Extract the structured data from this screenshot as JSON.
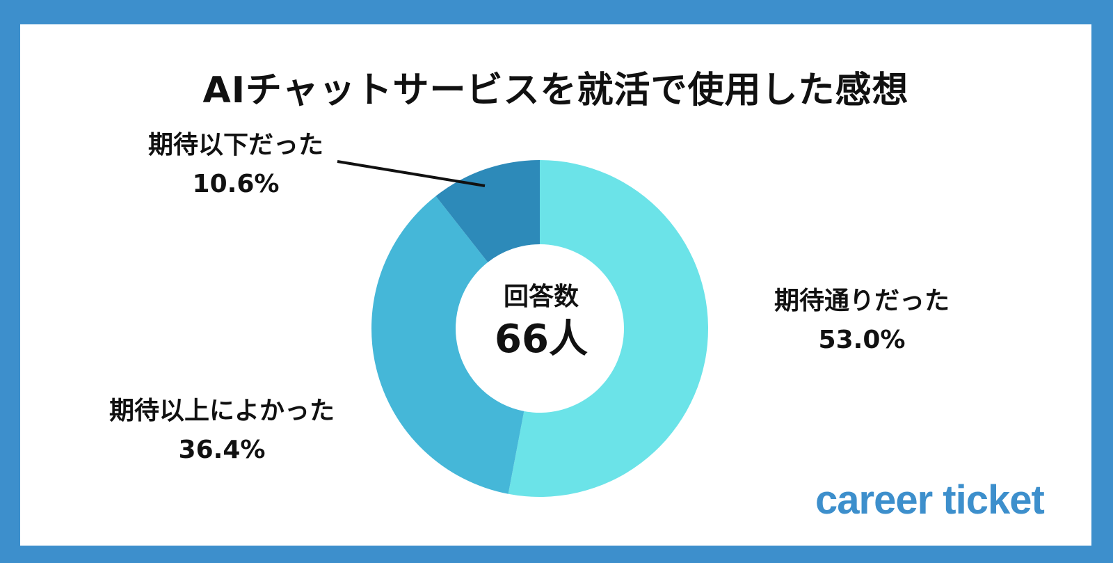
{
  "chart_data": {
    "type": "pie",
    "title": "AIチャットサービスを就活で使用した感想",
    "center": {
      "title": "回答数",
      "value": "66人"
    },
    "slices": [
      {
        "label": "期待通りだった",
        "value": 53.0,
        "value_label": "53.0%",
        "color": "#6be3e8"
      },
      {
        "label": "期待以上によかった",
        "value": 36.4,
        "value_label": "36.4%",
        "color": "#45b7d8"
      },
      {
        "label": "期待以下だった",
        "value": 10.6,
        "value_label": "10.6%",
        "color": "#2d8ab9"
      }
    ]
  },
  "colors": {
    "frame": "#3d8fcc",
    "background": "#ffffff",
    "text": "#111111"
  },
  "brand": {
    "logo_text": "career ticket",
    "color": "#3d8fcc"
  }
}
